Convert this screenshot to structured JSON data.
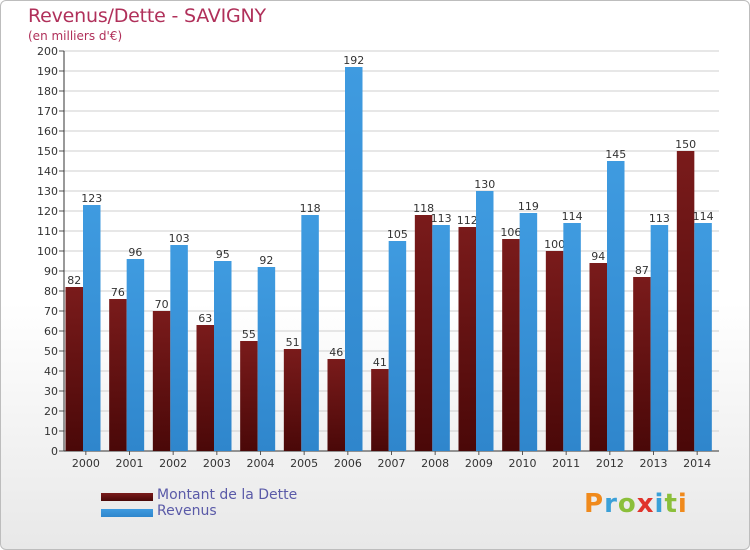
{
  "header": {
    "title": "Revenus/Dette - SAVIGNY",
    "subtitle": "(en milliers d'€)"
  },
  "legend": {
    "dette_label": "Montant de la Dette",
    "revenus_label": "Revenus"
  },
  "logo": {
    "text": "Proxiti",
    "colors": [
      "#f08a1c",
      "#3aa0d8",
      "#8bbf3a",
      "#e0342c",
      "#3aa0d8",
      "#8bbf3a",
      "#f08a1c"
    ]
  },
  "colors": {
    "dette": "#7a1b1b",
    "dette_dark": "#4a0808",
    "revenus": "#3f9be0",
    "revenus_dark": "#2f86cc",
    "title": "#b0305a",
    "legend_text": "#5a5aa8"
  },
  "chart_data": {
    "type": "bar",
    "title": "Revenus/Dette - SAVIGNY",
    "subtitle": "(en milliers d'€)",
    "categories": [
      "2000",
      "2001",
      "2002",
      "2003",
      "2004",
      "2005",
      "2006",
      "2007",
      "2008",
      "2009",
      "2010",
      "2011",
      "2012",
      "2013",
      "2014"
    ],
    "series": [
      {
        "name": "Montant de la Dette",
        "values": [
          82,
          76,
          70,
          63,
          55,
          51,
          46,
          41,
          118,
          112,
          106,
          100,
          94,
          87,
          150
        ]
      },
      {
        "name": "Revenus",
        "values": [
          123,
          96,
          103,
          95,
          92,
          118,
          192,
          105,
          113,
          130,
          119,
          114,
          145,
          113,
          114
        ]
      }
    ],
    "ylim": [
      0,
      200
    ],
    "yticks": [
      0,
      10,
      20,
      30,
      40,
      50,
      60,
      70,
      80,
      90,
      100,
      110,
      120,
      130,
      140,
      150,
      160,
      170,
      180,
      190,
      200
    ],
    "grid": true,
    "legend_position": "bottom-left"
  }
}
